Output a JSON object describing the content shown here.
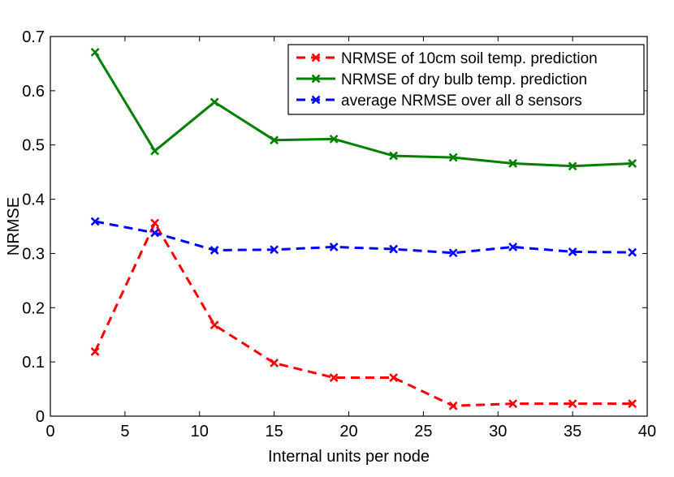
{
  "chart_data": {
    "type": "line",
    "title": "",
    "xlabel": "Internal units per node",
    "ylabel": "NRMSE",
    "xlim": [
      0,
      40
    ],
    "ylim": [
      0,
      0.7
    ],
    "xticks": [
      0,
      5,
      10,
      15,
      20,
      25,
      30,
      35,
      40
    ],
    "yticks": [
      0,
      0.1,
      0.2,
      0.3,
      0.4,
      0.5,
      0.6,
      0.7
    ],
    "xtick_labels": [
      "0",
      "5",
      "10",
      "15",
      "20",
      "25",
      "30",
      "35",
      "40"
    ],
    "ytick_labels": [
      "0",
      "0.1",
      "0.2",
      "0.3",
      "0.4",
      "0.5",
      "0.6",
      "0.7"
    ],
    "grid": false,
    "legend_position": "top-right",
    "x": [
      3,
      7,
      11,
      15,
      19,
      23,
      27,
      31,
      35,
      39
    ],
    "series": [
      {
        "name": "NRMSE of 10cm soil temp. prediction",
        "color": "#ff0000",
        "line_style": "dashed",
        "marker": "x",
        "values": [
          0.119,
          0.356,
          0.168,
          0.098,
          0.071,
          0.071,
          0.019,
          0.023,
          0.023,
          0.023
        ]
      },
      {
        "name": "NRMSE of dry bulb temp. prediction",
        "color": "#008000",
        "line_style": "solid",
        "marker": "x",
        "values": [
          0.671,
          0.489,
          0.579,
          0.509,
          0.511,
          0.48,
          0.477,
          0.466,
          0.461,
          0.466
        ]
      },
      {
        "name": "average NRMSE over all 8 sensors",
        "color": "#0000ff",
        "line_style": "dashed",
        "marker": "x",
        "values": [
          0.359,
          0.338,
          0.306,
          0.307,
          0.312,
          0.308,
          0.301,
          0.312,
          0.303,
          0.302
        ]
      }
    ]
  }
}
